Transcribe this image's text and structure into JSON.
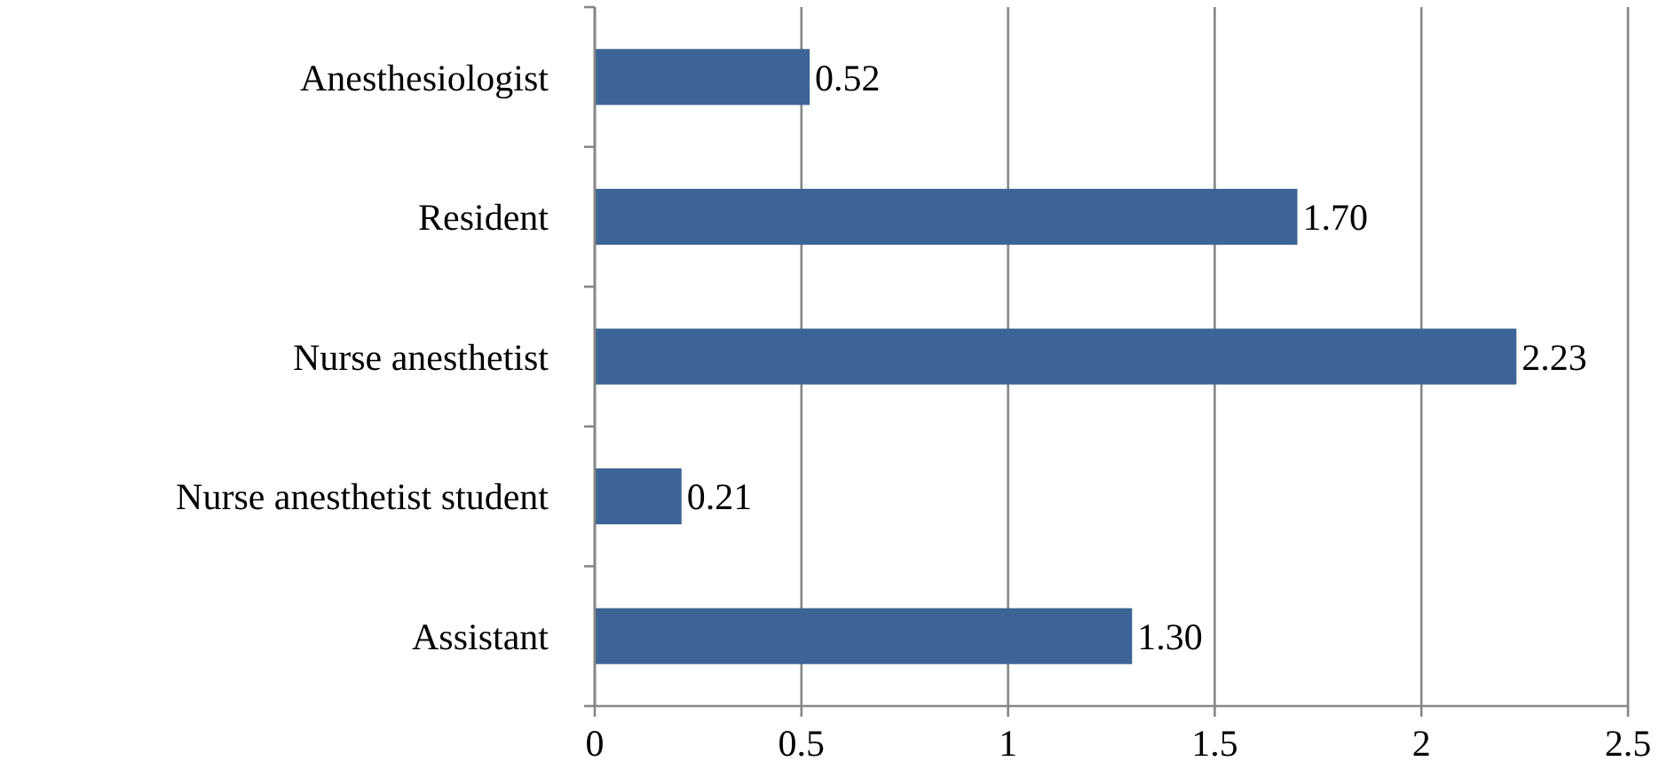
{
  "chart_data": {
    "type": "bar",
    "orientation": "horizontal",
    "categories": [
      "Anesthesiologist",
      "Resident",
      "Nurse anesthetist",
      "Nurse anesthetist student",
      "Assistant"
    ],
    "values": [
      0.52,
      1.7,
      2.23,
      0.21,
      1.3
    ],
    "value_labels": [
      "0.52",
      "1.70",
      "2.23",
      "0.21",
      "1.30"
    ],
    "color": "#3c6496",
    "xlim": [
      0,
      2.5
    ],
    "xticks": [
      0,
      0.5,
      1,
      1.5,
      2,
      2.5
    ],
    "grid": "x"
  }
}
